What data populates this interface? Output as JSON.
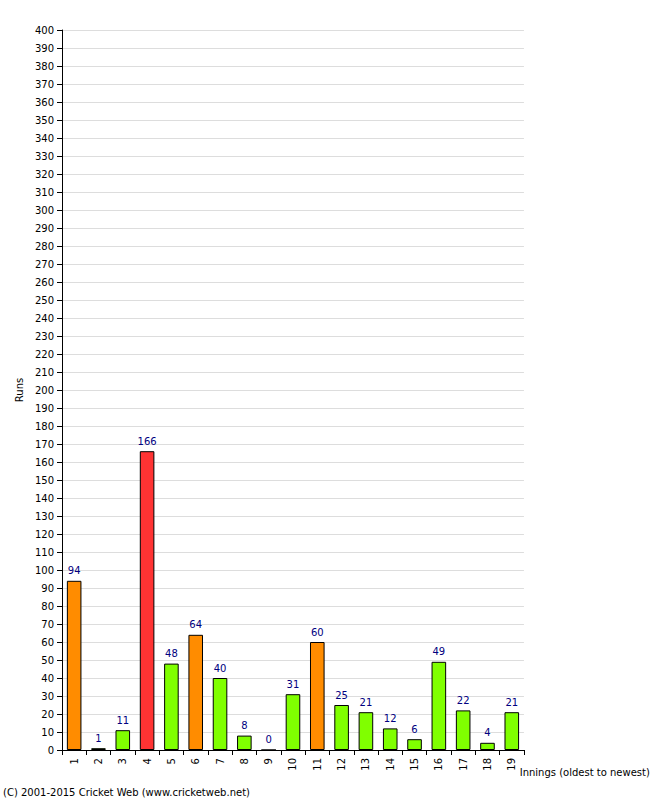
{
  "chart_data": {
    "type": "bar",
    "x_label": "Innings (oldest to newest)",
    "y_label": "Runs",
    "annotations": [
      "(C) 2001-2015 Cricket Web (www.cricketweb.net)"
    ],
    "categories": [
      "1",
      "2",
      "3",
      "4",
      "5",
      "6",
      "7",
      "8",
      "9",
      "10",
      "11",
      "12",
      "13",
      "14",
      "15",
      "16",
      "17",
      "18",
      "19"
    ],
    "values": [
      94,
      1,
      11,
      166,
      48,
      64,
      40,
      8,
      0,
      31,
      60,
      25,
      21,
      12,
      6,
      49,
      22,
      4,
      21
    ],
    "colors": [
      "#ff8c00",
      "#80ff00",
      "#80ff00",
      "#ff3333",
      "#80ff00",
      "#ff8c00",
      "#80ff00",
      "#80ff00",
      "#80ff00",
      "#80ff00",
      "#ff8c00",
      "#80ff00",
      "#80ff00",
      "#80ff00",
      "#80ff00",
      "#80ff00",
      "#80ff00",
      "#80ff00",
      "#80ff00"
    ],
    "ylim": [
      0,
      400
    ],
    "yticks": [
      0,
      10,
      20,
      30,
      40,
      50,
      60,
      70,
      80,
      90,
      100,
      110,
      120,
      130,
      140,
      150,
      160,
      170,
      180,
      190,
      200,
      210,
      220,
      230,
      240,
      250,
      260,
      270,
      280,
      290,
      300,
      310,
      320,
      330,
      340,
      350,
      360,
      370,
      380,
      390,
      400
    ],
    "grid": true,
    "data_labels": true
  }
}
